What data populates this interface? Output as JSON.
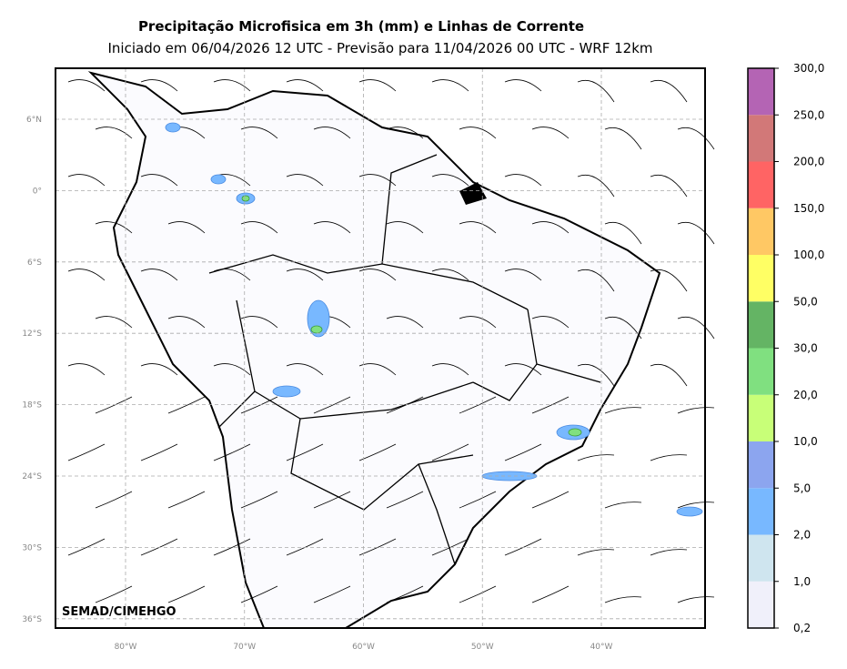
{
  "header": {
    "title": "Precipitação Microfisica em 3h (mm) e Linhas de Corrente",
    "subtitle": "Iniciado em 06/04/2026 12 UTC - Previsão para 11/04/2026 00 UTC - WRF 12km"
  },
  "map": {
    "lat_labels": [
      "6°N",
      "0°",
      "6°S",
      "12°S",
      "18°S",
      "24°S",
      "30°S",
      "36°S"
    ],
    "lon_labels": [
      "80°W",
      "70°W",
      "60°W",
      "50°W",
      "40°W"
    ],
    "credit": "SEMAD/CIMEHGO"
  },
  "colorbar": {
    "labels": [
      "0,2",
      "1,0",
      "2,0",
      "5,0",
      "10,0",
      "20,0",
      "30,0",
      "50,0",
      "100,0",
      "150,0",
      "200,0",
      "250,0",
      "300,0"
    ],
    "colors": [
      "#f0f0fa",
      "#cfe5ef",
      "#78b8ff",
      "#8ca5ef",
      "#c8ff78",
      "#80e080",
      "#64b464",
      "#ffff64",
      "#ffc864",
      "#ff6464",
      "#d27878",
      "#b464b4"
    ]
  }
}
